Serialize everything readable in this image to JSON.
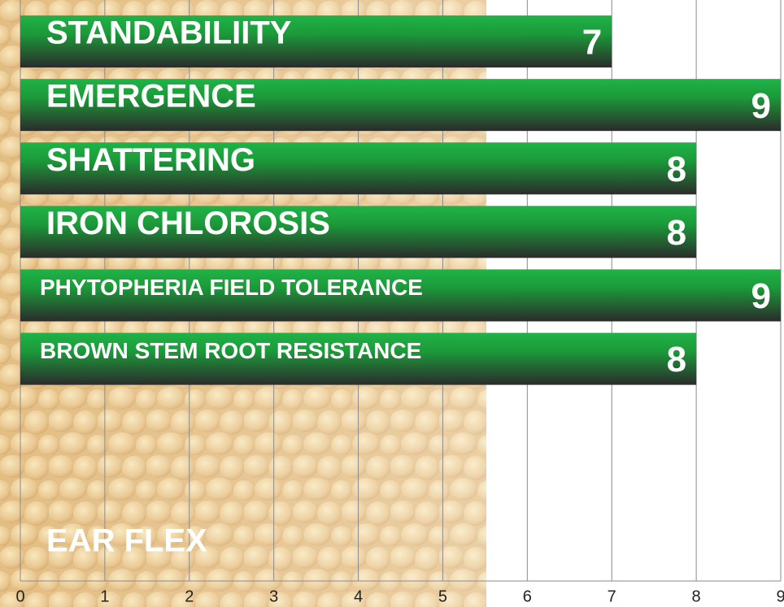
{
  "chart_data": {
    "type": "barh",
    "categories": [
      "STANDABILIITY",
      "EMERGENCE",
      "SHATTERING",
      "IRON CHLOROSIS",
      "PHYTOPHERIA FIELD TOLERANCE",
      "BROWN STEM ROOT RESISTANCE",
      null,
      null,
      "EAR FLEX"
    ],
    "values": [
      7,
      9,
      8,
      8,
      9,
      8,
      null,
      null,
      null
    ],
    "xlim": [
      0,
      9
    ],
    "xticks": [
      0,
      1,
      2,
      3,
      4,
      5,
      6,
      7,
      8,
      9
    ],
    "grid": true,
    "color": "#1fa33a"
  }
}
